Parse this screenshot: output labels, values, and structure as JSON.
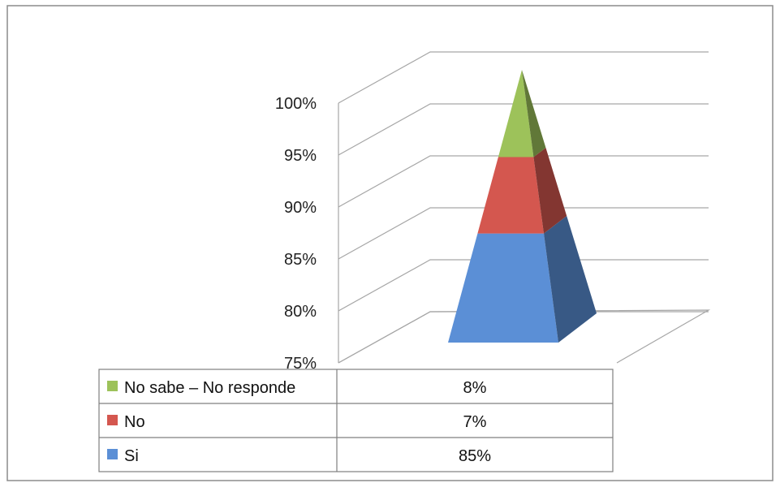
{
  "chart_data": {
    "type": "bar",
    "subtype": "3d-stacked-pyramid",
    "title": "",
    "xlabel": "",
    "ylabel": "",
    "ylim": [
      0.75,
      1.0
    ],
    "ytick_labels": [
      "75%",
      "80%",
      "85%",
      "90%",
      "95%",
      "100%"
    ],
    "grid": true,
    "legend": "data-table-below",
    "series": [
      {
        "name": "Si",
        "value": 0.85,
        "label": "85%",
        "color": "#5b8fd6"
      },
      {
        "name": "No",
        "value": 0.07,
        "label": "7%",
        "color": "#d4574f"
      },
      {
        "name": "No sabe – No responde",
        "value": 0.08,
        "label": "8%",
        "color": "#9dc25a"
      }
    ]
  }
}
